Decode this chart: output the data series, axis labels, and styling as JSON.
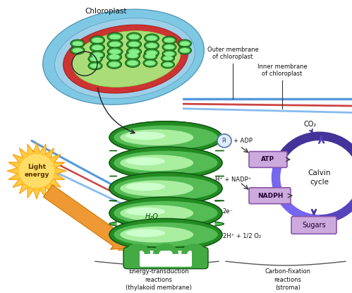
{
  "bg_color": "#ffffff",
  "chloroplast_label": "Chloroplast",
  "outer_membrane_label": "Outer membrane\nof chloroplast",
  "inner_membrane_label": "Inner membrane\nof chloroplast",
  "light_energy_label": "Light\nenergy",
  "calvin_cycle_label": "Calvin\ncycle",
  "co2_label": "CO₂",
  "sugars_label": "Sugars",
  "atp_label": "ATP",
  "nadph_label": "NADPH",
  "pi_adp_label": "Pi + ADP",
  "h_nadp_label": "H⁺ + NADP⁺",
  "h2o_label": "H₂O",
  "water_products_label": "2H⁺ + 1/2 O₂",
  "electrons_label": "2e⁻",
  "energy_transduction_label": "Energy-transduction\nreactions\n(thylakoid membrane)",
  "carbon_fixation_label": "Carbon-fixation\nreactions\n(stroma)",
  "colors": {
    "chloro_blue": "#7EC8E3",
    "chloro_red": "#CC3333",
    "chloro_green_stroma": "#AADD77",
    "chloro_green_dark": "#339933",
    "chloro_green_light": "#88EE88",
    "thylakoid_dark": "#228B22",
    "thylakoid_mid": "#55BB55",
    "thylakoid_light": "#AAEEA0",
    "thylakoid_highlight": "#CCFFCC",
    "ray_blue1": "#5599DD",
    "ray_red": "#CC4444",
    "ray_blue2": "#88BBEE",
    "sun_outer": "#FFCC44",
    "sun_inner": "#FFDD66",
    "orange_arrow": "#EE9933",
    "calvin_dark": "#443399",
    "calvin_mid": "#6655CC",
    "calvin_light": "#8877DD",
    "box_fill": "#CCAADD",
    "box_edge": "#8855AA",
    "dark_text": "#111111",
    "mid_text": "#333333"
  }
}
